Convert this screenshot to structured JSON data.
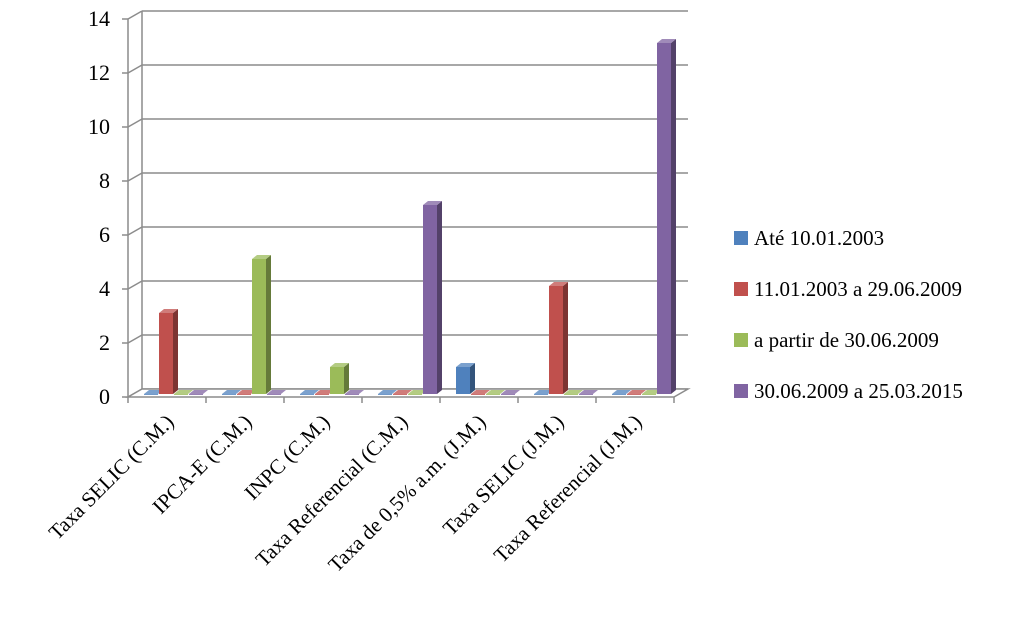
{
  "chart_data": {
    "type": "bar",
    "categories": [
      "Taxa SELIC (C.M.)",
      "IPCA-E (C.M.)",
      "INPC (C.M.)",
      "Taxa Referencial (C.M.)",
      "Taxa de 0,5% a.m. (J.M.)",
      "Taxa SELIC (J.M.)",
      "Taxa Referencial (J.M.)"
    ],
    "series": [
      {
        "name": "Até 10.01.2003",
        "values": [
          0,
          0,
          0,
          0,
          1,
          0,
          0
        ],
        "color": "#4f81bd"
      },
      {
        "name": "11.01.2003 a 29.06.2009",
        "values": [
          3,
          0,
          0,
          0,
          0,
          4,
          0
        ],
        "color": "#c0504d"
      },
      {
        "name": "a partir de 30.06.2009",
        "values": [
          0,
          5,
          1,
          0,
          0,
          0,
          0
        ],
        "color": "#9bbb59"
      },
      {
        "name": "30.06.2009 a 25.03.2015",
        "values": [
          0,
          0,
          0,
          7,
          0,
          0,
          13
        ],
        "color": "#8064a2"
      }
    ],
    "yticks": [
      "0",
      "2",
      "4",
      "6",
      "8",
      "10",
      "12",
      "14"
    ],
    "ylim": [
      0,
      14
    ],
    "grid": true,
    "legend_position": "right",
    "style": "3d-column"
  }
}
